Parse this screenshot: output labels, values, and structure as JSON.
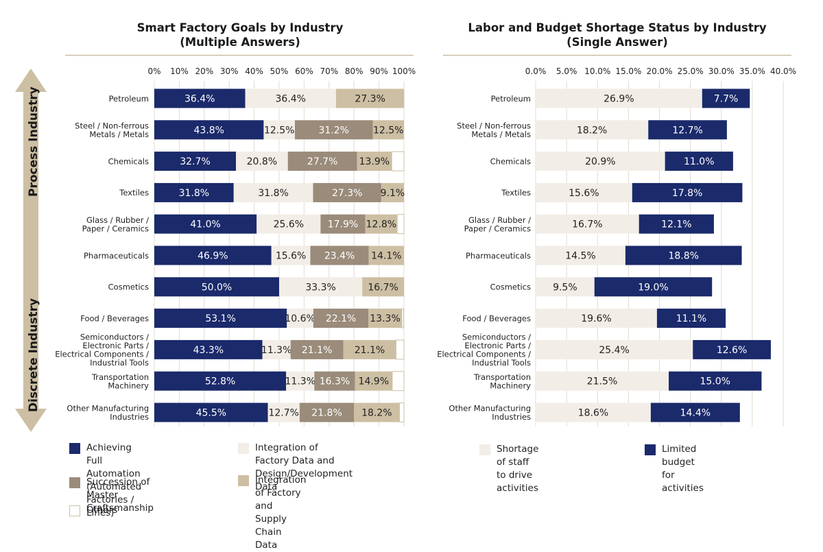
{
  "side_labels": {
    "process": "Process Industry",
    "discrete": "Discrete Industry"
  },
  "chart_data": [
    {
      "type": "bar",
      "orientation": "horizontal",
      "stacked": true,
      "title_line1": "Smart Factory Goals by Industry",
      "title_line2": "(Multiple Answers)",
      "xlim": [
        0,
        100
      ],
      "ticks": [
        "0%",
        "10%",
        "20%",
        "30%",
        "40%",
        "50%",
        "60%",
        "70%",
        "80%",
        "90%",
        "100%"
      ],
      "categories": [
        "Petroleum",
        "Steel / Non-ferrous\nMetals / Metals",
        "Chemicals",
        "Textiles",
        "Glass / Rubber /\nPaper / Ceramics",
        "Pharmaceuticals",
        "Cosmetics",
        "Food / Beverages",
        "Semiconductors /\nElectronic Parts /\nElectrical Components /\nIndustrial Tools",
        "Transportation\nMachinery",
        "Other Manufacturing\nIndustries"
      ],
      "series": [
        {
          "name": "Achieving Full Automation\n(Automated Factories / Lines)",
          "color": "#1b2a6b",
          "values": [
            36.4,
            43.8,
            32.7,
            31.8,
            41.0,
            46.9,
            50.0,
            53.1,
            43.3,
            52.8,
            45.5
          ],
          "labels": [
            "36.4%",
            "43.8%",
            "32.7%",
            "31.8%",
            "41.0%",
            "46.9%",
            "50.0%",
            "53.1%",
            "43.3%",
            "52.8%",
            "45.5%"
          ]
        },
        {
          "name": "Integration of Factory Data and\nDesign/Development Data",
          "color": "#f2ede6",
          "values": [
            36.4,
            12.5,
            20.8,
            31.8,
            25.6,
            15.6,
            33.3,
            10.6,
            11.3,
            11.3,
            12.7
          ],
          "labels": [
            "36.4%",
            "12.5%",
            "20.8%",
            "31.8%",
            "25.6%",
            "15.6%",
            "33.3%",
            "10.6%",
            "11.3%",
            "11.3%",
            "12.7%"
          ]
        },
        {
          "name": "Succession of Master\nCraftsmanship",
          "color": "#9a8b7a",
          "values": [
            0,
            31.2,
            27.7,
            27.3,
            17.9,
            23.4,
            0,
            22.1,
            21.1,
            16.3,
            21.8
          ],
          "labels": [
            "",
            "31.2%",
            "27.7%",
            "27.3%",
            "17.9%",
            "23.4%",
            "",
            "22.1%",
            "21.1%",
            "16.3%",
            "21.8%"
          ]
        },
        {
          "name": "Integration of Factory and Supply\nChain Data",
          "color": "#cdbfa3",
          "values": [
            27.3,
            12.5,
            13.9,
            9.1,
            12.8,
            14.1,
            16.7,
            13.3,
            21.1,
            14.9,
            18.2
          ],
          "labels": [
            "27.3%",
            "12.5%",
            "13.9%",
            "9.1%",
            "12.8%",
            "14.1%",
            "16.7%",
            "13.3%",
            "21.1%",
            "14.9%",
            "18.2%"
          ]
        },
        {
          "name": "Others",
          "color": "#ffffff",
          "values": [
            0,
            0,
            4.9,
            0,
            2.7,
            0,
            0,
            0.7,
            3.2,
            4.7,
            1.8
          ],
          "labels": [
            "",
            "",
            "",
            "",
            "",
            "",
            "",
            "",
            "",
            "",
            ""
          ]
        }
      ]
    },
    {
      "type": "bar",
      "orientation": "horizontal",
      "stacked": true,
      "title_line1": "Labor and Budget Shortage Status by Industry",
      "title_line2": "(Single Answer)",
      "xlim": [
        0,
        40
      ],
      "ticks": [
        "0.0%",
        "5.0%",
        "10.0%",
        "15.0%",
        "20.0%",
        "25.0%",
        "30.0%",
        "35.0%",
        "40.0%"
      ],
      "categories": [
        "Petroleum",
        "Steel / Non-ferrous\nMetals / Metals",
        "Chemicals",
        "Textiles",
        "Glass / Rubber /\nPaper / Ceramics",
        "Pharmaceuticals",
        "Cosmetics",
        "Food / Beverages",
        "Semiconductors /\nElectronic Parts /\nElectrical Components /\nIndustrial Tools",
        "Transportation\nMachinery",
        "Other Manufacturing\nIndustries"
      ],
      "series": [
        {
          "name": "Shortage of staff to drive\nactivities",
          "color": "#f2ede6",
          "values": [
            26.9,
            18.2,
            20.9,
            15.6,
            16.7,
            14.5,
            9.5,
            19.6,
            25.4,
            21.5,
            18.6
          ],
          "labels": [
            "26.9%",
            "18.2%",
            "20.9%",
            "15.6%",
            "16.7%",
            "14.5%",
            "9.5%",
            "19.6%",
            "25.4%",
            "21.5%",
            "18.6%"
          ]
        },
        {
          "name": "Limited budget for activities",
          "color": "#1b2a6b",
          "values": [
            7.7,
            12.7,
            11.0,
            17.8,
            12.1,
            18.8,
            19.0,
            11.1,
            12.6,
            15.0,
            14.4
          ],
          "labels": [
            "7.7%",
            "12.7%",
            "11.0%",
            "17.8%",
            "12.1%",
            "18.8%",
            "19.0%",
            "11.1%",
            "12.6%",
            "15.0%",
            "14.4%"
          ]
        }
      ]
    }
  ]
}
